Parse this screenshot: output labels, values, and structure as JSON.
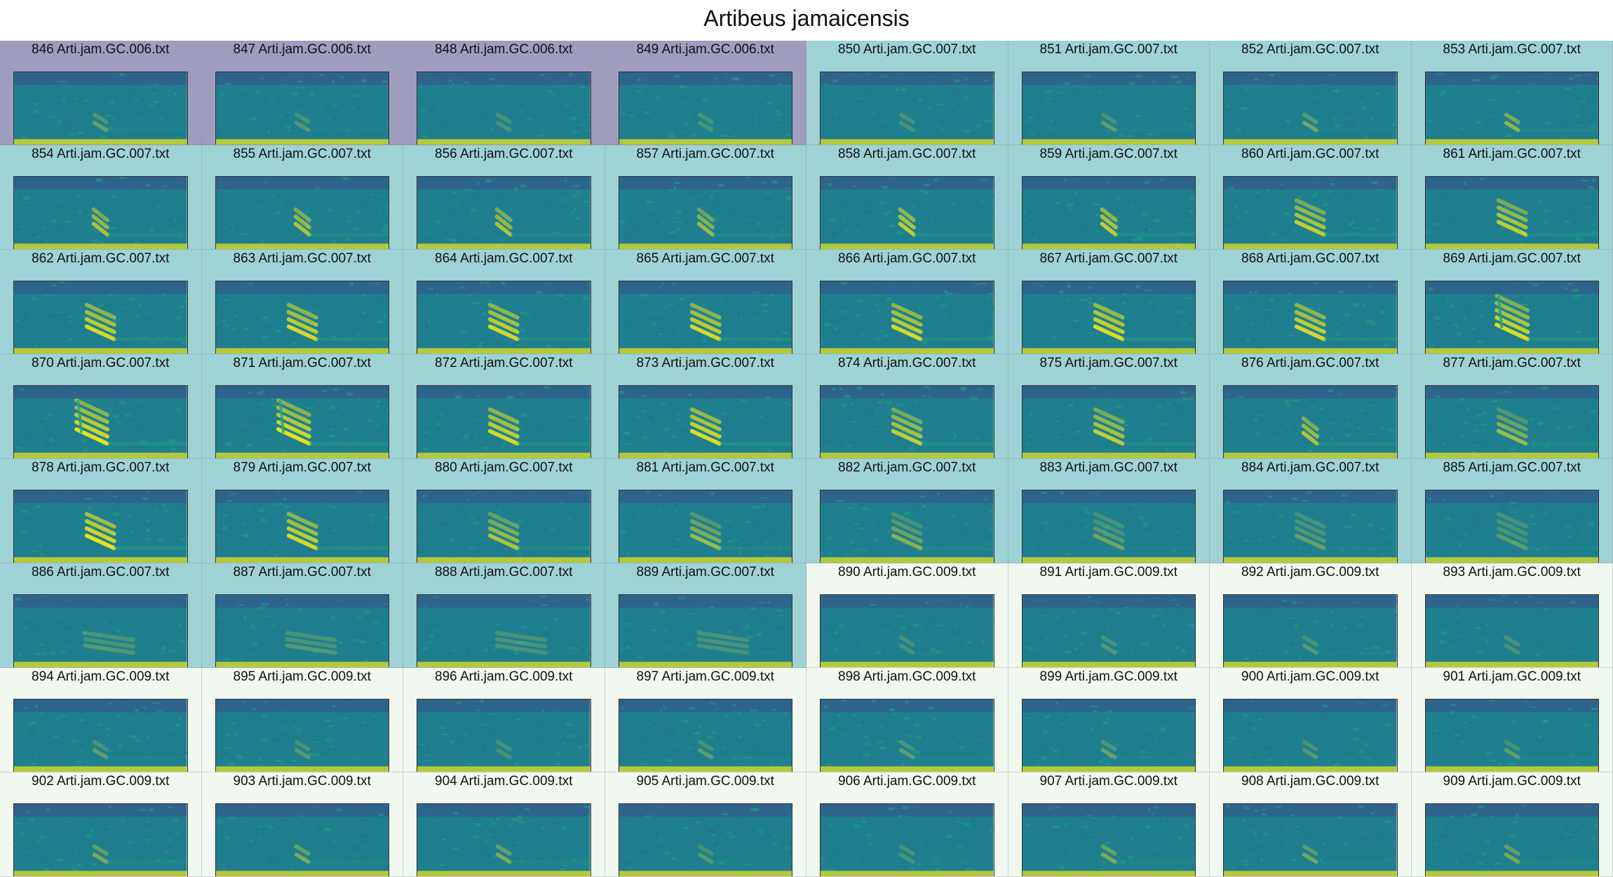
{
  "title": "Artibeus jamaicensis",
  "colors": {
    "group_006": "#9f9dbf",
    "group_007": "#9fd2d4",
    "group_009": "#f1f8f0",
    "spec_bg": "#1f7f8e",
    "spec_dark": "#3b4f8a",
    "spec_mid": "#22a384",
    "spec_bright": "#e8e21d",
    "spec_noise": "#2c6d90"
  },
  "tiles": [
    {
      "label": "846 Arti.jam.GC.006.txt",
      "group": "006",
      "call": 0.35,
      "pos": 0.5,
      "shape": "small"
    },
    {
      "label": "847 Arti.jam.GC.006.txt",
      "group": "006",
      "call": 0.25,
      "pos": 0.5,
      "shape": "small"
    },
    {
      "label": "848 Arti.jam.GC.006.txt",
      "group": "006",
      "call": 0.2,
      "pos": 0.5,
      "shape": "small"
    },
    {
      "label": "849 Arti.jam.GC.006.txt",
      "group": "006",
      "call": 0.15,
      "pos": 0.5,
      "shape": "small"
    },
    {
      "label": "850 Arti.jam.GC.007.txt",
      "group": "007",
      "call": 0.2,
      "pos": 0.5,
      "shape": "small"
    },
    {
      "label": "851 Arti.jam.GC.007.txt",
      "group": "007",
      "call": 0.3,
      "pos": 0.5,
      "shape": "small"
    },
    {
      "label": "852 Arti.jam.GC.007.txt",
      "group": "007",
      "call": 0.4,
      "pos": 0.5,
      "shape": "small"
    },
    {
      "label": "853 Arti.jam.GC.007.txt",
      "group": "007",
      "call": 0.55,
      "pos": 0.5,
      "shape": "small"
    },
    {
      "label": "854 Arti.jam.GC.007.txt",
      "group": "007",
      "call": 0.7,
      "pos": 0.5,
      "shape": "medium"
    },
    {
      "label": "855 Arti.jam.GC.007.txt",
      "group": "007",
      "call": 0.7,
      "pos": 0.5,
      "shape": "medium"
    },
    {
      "label": "856 Arti.jam.GC.007.txt",
      "group": "007",
      "call": 0.7,
      "pos": 0.5,
      "shape": "medium"
    },
    {
      "label": "857 Arti.jam.GC.007.txt",
      "group": "007",
      "call": 0.6,
      "pos": 0.5,
      "shape": "medium"
    },
    {
      "label": "858 Arti.jam.GC.007.txt",
      "group": "007",
      "call": 0.8,
      "pos": 0.5,
      "shape": "medium"
    },
    {
      "label": "859 Arti.jam.GC.007.txt",
      "group": "007",
      "call": 0.8,
      "pos": 0.5,
      "shape": "medium"
    },
    {
      "label": "860 Arti.jam.GC.007.txt",
      "group": "007",
      "call": 0.8,
      "pos": 0.5,
      "shape": "large"
    },
    {
      "label": "861 Arti.jam.GC.007.txt",
      "group": "007",
      "call": 0.8,
      "pos": 0.5,
      "shape": "large"
    },
    {
      "label": "862 Arti.jam.GC.007.txt",
      "group": "007",
      "call": 0.9,
      "pos": 0.5,
      "shape": "large"
    },
    {
      "label": "863 Arti.jam.GC.007.txt",
      "group": "007",
      "call": 0.9,
      "pos": 0.5,
      "shape": "large"
    },
    {
      "label": "864 Arti.jam.GC.007.txt",
      "group": "007",
      "call": 0.9,
      "pos": 0.5,
      "shape": "large"
    },
    {
      "label": "865 Arti.jam.GC.007.txt",
      "group": "007",
      "call": 0.9,
      "pos": 0.5,
      "shape": "large"
    },
    {
      "label": "866 Arti.jam.GC.007.txt",
      "group": "007",
      "call": 0.9,
      "pos": 0.5,
      "shape": "large"
    },
    {
      "label": "867 Arti.jam.GC.007.txt",
      "group": "007",
      "call": 0.95,
      "pos": 0.5,
      "shape": "large"
    },
    {
      "label": "868 Arti.jam.GC.007.txt",
      "group": "007",
      "call": 0.9,
      "pos": 0.5,
      "shape": "large"
    },
    {
      "label": "869 Arti.jam.GC.007.txt",
      "group": "007",
      "call": 0.95,
      "pos": 0.5,
      "shape": "tall"
    },
    {
      "label": "870 Arti.jam.GC.007.txt",
      "group": "007",
      "call": 1.0,
      "pos": 0.45,
      "shape": "tall"
    },
    {
      "label": "871 Arti.jam.GC.007.txt",
      "group": "007",
      "call": 1.0,
      "pos": 0.45,
      "shape": "tall"
    },
    {
      "label": "872 Arti.jam.GC.007.txt",
      "group": "007",
      "call": 0.9,
      "pos": 0.5,
      "shape": "large"
    },
    {
      "label": "873 Arti.jam.GC.007.txt",
      "group": "007",
      "call": 0.95,
      "pos": 0.5,
      "shape": "large"
    },
    {
      "label": "874 Arti.jam.GC.007.txt",
      "group": "007",
      "call": 0.8,
      "pos": 0.5,
      "shape": "large"
    },
    {
      "label": "875 Arti.jam.GC.007.txt",
      "group": "007",
      "call": 0.8,
      "pos": 0.5,
      "shape": "large"
    },
    {
      "label": "876 Arti.jam.GC.007.txt",
      "group": "007",
      "call": 0.7,
      "pos": 0.5,
      "shape": "medium"
    },
    {
      "label": "877 Arti.jam.GC.007.txt",
      "group": "007",
      "call": 0.6,
      "pos": 0.5,
      "shape": "large"
    },
    {
      "label": "878 Arti.jam.GC.007.txt",
      "group": "007",
      "call": 1.0,
      "pos": 0.5,
      "shape": "large"
    },
    {
      "label": "879 Arti.jam.GC.007.txt",
      "group": "007",
      "call": 0.9,
      "pos": 0.5,
      "shape": "large"
    },
    {
      "label": "880 Arti.jam.GC.007.txt",
      "group": "007",
      "call": 0.7,
      "pos": 0.5,
      "shape": "large"
    },
    {
      "label": "881 Arti.jam.GC.007.txt",
      "group": "007",
      "call": 0.6,
      "pos": 0.5,
      "shape": "large"
    },
    {
      "label": "882 Arti.jam.GC.007.txt",
      "group": "007",
      "call": 0.5,
      "pos": 0.5,
      "shape": "large"
    },
    {
      "label": "883 Arti.jam.GC.007.txt",
      "group": "007",
      "call": 0.4,
      "pos": 0.5,
      "shape": "large"
    },
    {
      "label": "884 Arti.jam.GC.007.txt",
      "group": "007",
      "call": 0.35,
      "pos": 0.5,
      "shape": "large"
    },
    {
      "label": "885 Arti.jam.GC.007.txt",
      "group": "007",
      "call": 0.3,
      "pos": 0.5,
      "shape": "large"
    },
    {
      "label": "886 Arti.jam.GC.007.txt",
      "group": "007",
      "call": 0.25,
      "pos": 0.55,
      "shape": "long"
    },
    {
      "label": "887 Arti.jam.GC.007.txt",
      "group": "007",
      "call": 0.25,
      "pos": 0.55,
      "shape": "long"
    },
    {
      "label": "888 Arti.jam.GC.007.txt",
      "group": "007",
      "call": 0.2,
      "pos": 0.6,
      "shape": "long"
    },
    {
      "label": "889 Arti.jam.GC.007.txt",
      "group": "007",
      "call": 0.2,
      "pos": 0.6,
      "shape": "long"
    },
    {
      "label": "890 Arti.jam.GC.009.txt",
      "group": "009",
      "call": 0.2,
      "pos": 0.5,
      "shape": "small"
    },
    {
      "label": "891 Arti.jam.GC.009.txt",
      "group": "009",
      "call": 0.25,
      "pos": 0.5,
      "shape": "small"
    },
    {
      "label": "892 Arti.jam.GC.009.txt",
      "group": "009",
      "call": 0.25,
      "pos": 0.5,
      "shape": "small"
    },
    {
      "label": "893 Arti.jam.GC.009.txt",
      "group": "009",
      "call": 0.2,
      "pos": 0.5,
      "shape": "small"
    },
    {
      "label": "894 Arti.jam.GC.009.txt",
      "group": "009",
      "call": 0.3,
      "pos": 0.5,
      "shape": "small"
    },
    {
      "label": "895 Arti.jam.GC.009.txt",
      "group": "009",
      "call": 0.25,
      "pos": 0.5,
      "shape": "small"
    },
    {
      "label": "896 Arti.jam.GC.009.txt",
      "group": "009",
      "call": 0.2,
      "pos": 0.5,
      "shape": "small"
    },
    {
      "label": "897 Arti.jam.GC.009.txt",
      "group": "009",
      "call": 0.3,
      "pos": 0.5,
      "shape": "small"
    },
    {
      "label": "898 Arti.jam.GC.009.txt",
      "group": "009",
      "call": 0.3,
      "pos": 0.5,
      "shape": "small"
    },
    {
      "label": "899 Arti.jam.GC.009.txt",
      "group": "009",
      "call": 0.35,
      "pos": 0.5,
      "shape": "small"
    },
    {
      "label": "900 Arti.jam.GC.009.txt",
      "group": "009",
      "call": 0.25,
      "pos": 0.5,
      "shape": "small"
    },
    {
      "label": "901 Arti.jam.GC.009.txt",
      "group": "009",
      "call": 0.3,
      "pos": 0.5,
      "shape": "small"
    },
    {
      "label": "902 Arti.jam.GC.009.txt",
      "group": "009",
      "call": 0.45,
      "pos": 0.5,
      "shape": "small"
    },
    {
      "label": "903 Arti.jam.GC.009.txt",
      "group": "009",
      "call": 0.45,
      "pos": 0.5,
      "shape": "small"
    },
    {
      "label": "904 Arti.jam.GC.009.txt",
      "group": "009",
      "call": 0.45,
      "pos": 0.5,
      "shape": "small"
    },
    {
      "label": "905 Arti.jam.GC.009.txt",
      "group": "009",
      "call": 0.25,
      "pos": 0.5,
      "shape": "small"
    },
    {
      "label": "906 Arti.jam.GC.009.txt",
      "group": "009",
      "call": 0.2,
      "pos": 0.5,
      "shape": "small"
    },
    {
      "label": "907 Arti.jam.GC.009.txt",
      "group": "009",
      "call": 0.45,
      "pos": 0.5,
      "shape": "small"
    },
    {
      "label": "908 Arti.jam.GC.009.txt",
      "group": "009",
      "call": 0.4,
      "pos": 0.5,
      "shape": "small"
    },
    {
      "label": "909 Arti.jam.GC.009.txt",
      "group": "009",
      "call": 0.45,
      "pos": 0.5,
      "shape": "small"
    }
  ]
}
